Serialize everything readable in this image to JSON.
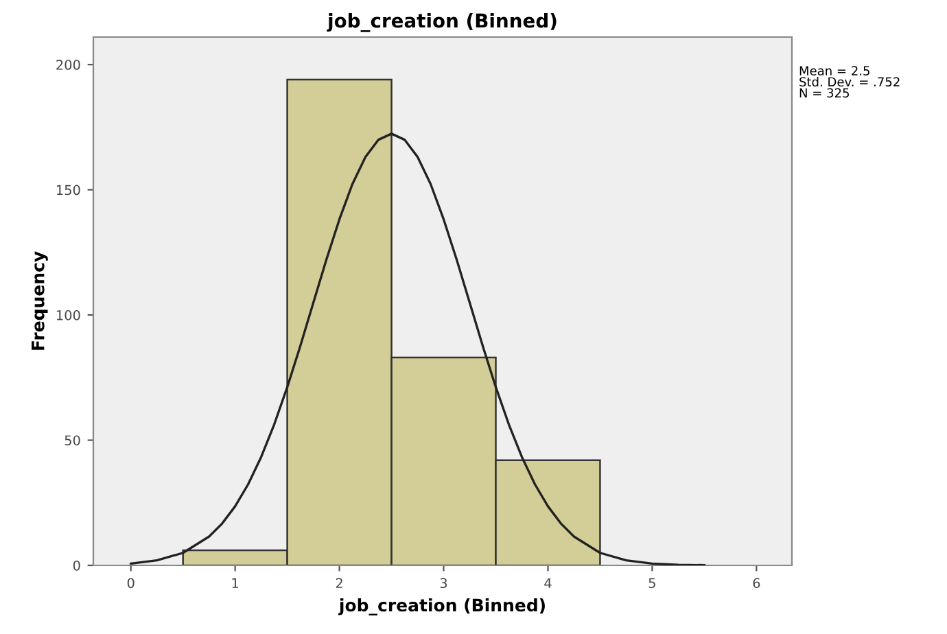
{
  "chart_data": {
    "type": "histogram",
    "title": "job_creation (Binned)",
    "xlabel": "job_creation (Binned)",
    "ylabel": "Frequency",
    "bins": [
      0.5,
      1.5,
      2.5,
      3.5,
      4.5
    ],
    "values": [
      6,
      194,
      83,
      42
    ],
    "color": "#d3ce97",
    "series": [
      {
        "type": "line",
        "color": "#222222",
        "x": [
          0,
          0.25,
          0.5,
          0.75,
          0.875,
          1.0,
          1.125,
          1.25,
          1.375,
          1.5,
          1.625,
          1.75,
          1.875,
          2.0,
          2.125,
          2.25,
          2.375,
          2.5,
          2.625,
          2.75,
          2.875,
          3.0,
          3.125,
          3.25,
          3.375,
          3.5,
          3.625,
          3.75,
          3.875,
          4.0,
          4.125,
          4.25,
          4.5,
          4.75,
          5.0,
          5.25,
          5.5
        ],
        "values": [
          0.7,
          2,
          5,
          11.5,
          16.7,
          23.6,
          32.4,
          43.3,
          56.3,
          71.2,
          87.6,
          104.9,
          122.1,
          138.2,
          152.3,
          163.1,
          170.0,
          172.4,
          170.0,
          163.1,
          152.3,
          138.2,
          122.1,
          104.9,
          87.6,
          71.2,
          56.3,
          43.3,
          32.4,
          23.6,
          16.7,
          11.5,
          5,
          2,
          0.7,
          0.2,
          0.1
        ]
      }
    ],
    "annotations": [
      "Mean = 2.5\nStd. Dev. = .752\nN = 325"
    ],
    "xlim": [
      -0.36,
      6.34
    ],
    "ylim": [
      0,
      211
    ],
    "xticks": [
      0,
      1,
      2,
      3,
      4,
      5,
      6
    ],
    "yticks": [
      0,
      50,
      100,
      150,
      200
    ],
    "grid": false,
    "legend": false
  }
}
